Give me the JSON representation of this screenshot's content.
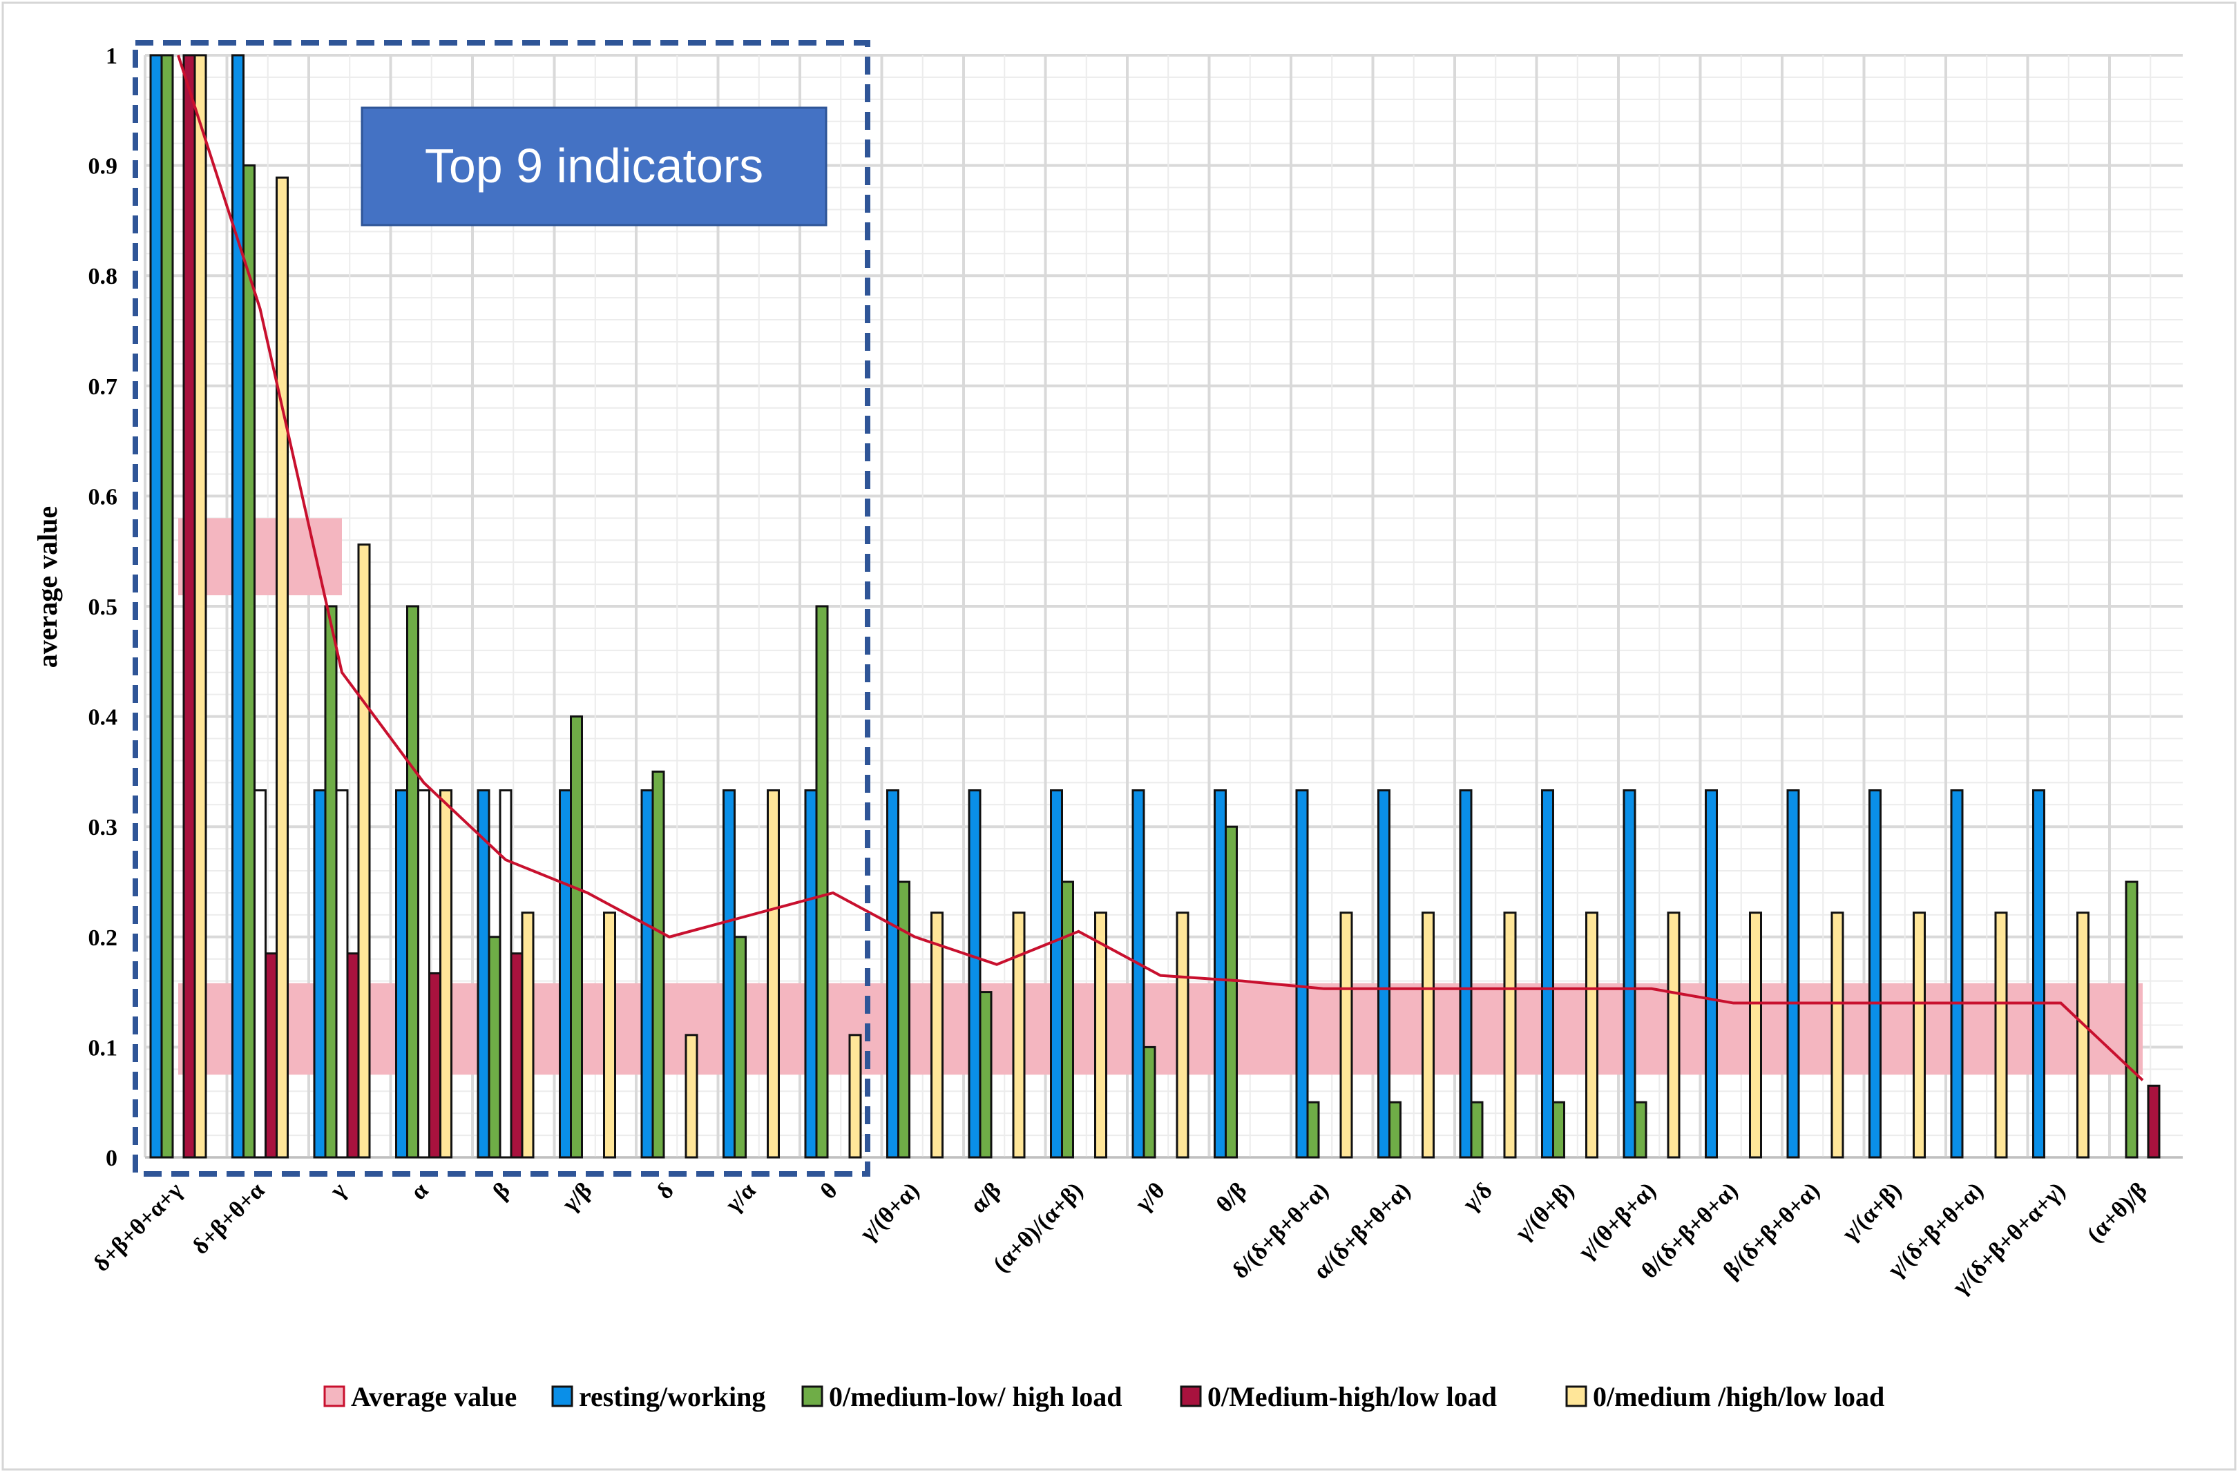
{
  "chart_data": {
    "type": "bar",
    "title": "",
    "xlabel": "",
    "ylabel": "average value",
    "ylim": [
      0,
      1
    ],
    "yticks": [
      "0",
      "0.1",
      "0.2",
      "0.3",
      "0.4",
      "0.5",
      "0.6",
      "0.7",
      "0.8",
      "0.9",
      "1"
    ],
    "grid": true,
    "legend_position": "bottom",
    "categories": [
      "δ+β+θ+α+γ",
      "δ+β+θ+α",
      "γ",
      "α",
      "β",
      "γ/β",
      "δ",
      "γ/α",
      "θ",
      "γ/(θ+α)",
      "α/β",
      "(α+θ)/(α+β)",
      "γ/θ",
      "θ/β",
      "δ/(δ+β+θ+α)",
      "α/(δ+β+θ+α)",
      "γ/δ",
      "γ/(θ+β)",
      "γ/(θ+β+α)",
      "θ/(δ+β+θ+α)",
      "β/(δ+β+θ+α)",
      "γ/(α+β)",
      "γ/(δ+β+θ+α)",
      "γ/(δ+β+θ+α+γ)",
      "(α+θ)/β"
    ],
    "series": [
      {
        "name": "resting/working",
        "color": "#0a8fe8",
        "values": [
          1,
          1,
          0.333,
          0.333,
          0.333,
          0.333,
          0.333,
          0.333,
          0.333,
          0.333,
          0.333,
          0.333,
          0.333,
          0.333,
          0.333,
          0.333,
          0.333,
          0.333,
          0.333,
          0.333,
          0.333,
          0.333,
          0.333,
          0.333,
          0
        ]
      },
      {
        "name": "0/medium-low/ high load",
        "color": "#6fad47",
        "values": [
          1,
          0.9,
          0.5,
          0.5,
          0.2,
          0.4,
          0.35,
          0.2,
          0.5,
          0.25,
          0.15,
          0.25,
          0.1,
          0.3,
          0.05,
          0.05,
          0.05,
          0.05,
          0.05,
          0,
          0,
          0,
          0,
          0,
          0.25
        ]
      },
      {
        "name": "0/Medium-high/low load",
        "color": "#a8123e",
        "values": [
          1,
          0.185,
          0.185,
          0.167,
          0.185,
          0,
          0,
          0,
          0,
          0,
          0,
          0,
          0,
          0,
          0,
          0,
          0,
          0,
          0,
          0,
          0,
          0,
          0,
          0,
          0.065
        ]
      },
      {
        "name": "0/medium /high/low load",
        "color": "#ffe699",
        "values": [
          1,
          0.889,
          0.556,
          0.333,
          0.222,
          0.222,
          0.111,
          0.333,
          0.111,
          0.222,
          0.222,
          0.222,
          0.222,
          0,
          0.222,
          0.222,
          0.222,
          0.222,
          0.222,
          0.222,
          0.222,
          0.222,
          0.222,
          0.222,
          0
        ]
      }
    ],
    "hidden_bars": {
      "color": "#ffffff",
      "values": [
        0,
        0.333,
        0.333,
        0.333,
        0.333,
        0,
        0,
        0,
        0,
        0,
        0,
        0,
        0,
        0,
        0,
        0,
        0,
        0,
        0,
        0,
        0,
        0,
        0,
        0,
        0
      ]
    },
    "average_line": {
      "color": "#c8102e",
      "values": [
        1,
        0.77,
        0.44,
        0.34,
        0.27,
        0.24,
        0.2,
        0.22,
        0.24,
        0.2,
        0.175,
        0.205,
        0.165,
        0.16,
        0.153,
        0.153,
        0.153,
        0.153,
        0.153,
        0.14,
        0.14,
        0.14,
        0.14,
        0.14,
        0.07
      ]
    },
    "average_bands": {
      "name": "Average value",
      "color": "#f4b6c0",
      "bands": [
        {
          "from": 0,
          "to": 2,
          "y0": 0.51,
          "y1": 0.58
        },
        {
          "from": 0,
          "to": 24,
          "y0": 0.075,
          "y1": 0.158
        }
      ]
    },
    "callout": {
      "label": "Top 9 indicators",
      "box_color": "#4472c4",
      "border_color": "#2f5597"
    }
  }
}
